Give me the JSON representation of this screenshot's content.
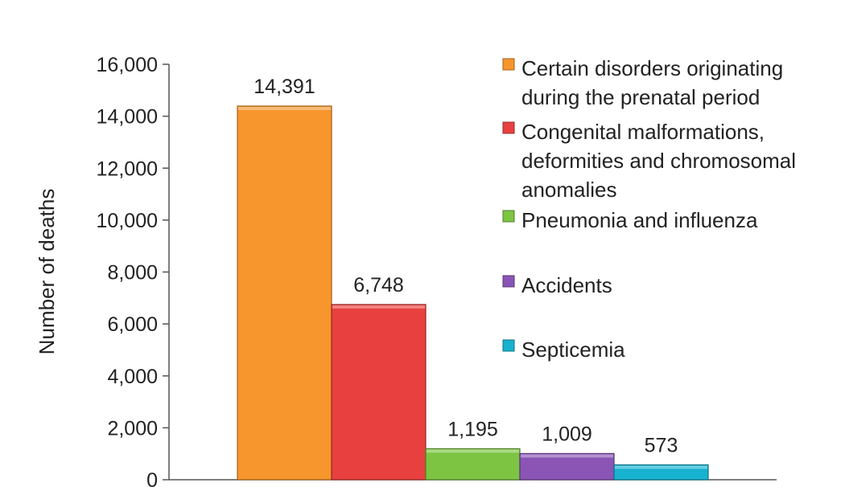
{
  "chart_data": {
    "type": "bar",
    "ylabel": "Number of deaths",
    "ylim": [
      0,
      16000
    ],
    "ytick_step": 2000,
    "y_ticks": [
      "0",
      "2,000",
      "4,000",
      "6,000",
      "8,000",
      "10,000",
      "12,000",
      "14,000",
      "16,000"
    ],
    "grid": false,
    "legend_position": "right",
    "series": [
      {
        "name": "Certain disorders originating during the prenatal period",
        "legend_lines": [
          "Certain disorders originating",
          "during the prenatal period"
        ],
        "value": 14391,
        "label": "14,391",
        "color": "#F7962D"
      },
      {
        "name": "Congenital malformations, deformities and chromosomal anomalies",
        "legend_lines": [
          "Congenital malformations,",
          "deformities and chromosomal",
          "anomalies"
        ],
        "value": 6748,
        "label": "6,748",
        "color": "#E8403F"
      },
      {
        "name": "Pneumonia and influenza",
        "legend_lines": [
          "Pneumonia and influenza"
        ],
        "value": 1195,
        "label": "1,195",
        "color": "#7CC442"
      },
      {
        "name": "Accidents",
        "legend_lines": [
          "Accidents"
        ],
        "value": 1009,
        "label": "1,009",
        "color": "#8A55B5"
      },
      {
        "name": "Septicemia",
        "legend_lines": [
          "Septicemia"
        ],
        "value": 573,
        "label": "573",
        "color": "#17B2CF"
      }
    ]
  }
}
